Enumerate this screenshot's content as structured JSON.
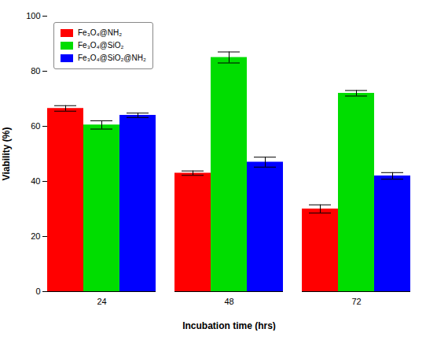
{
  "chart_data": {
    "type": "bar",
    "categories": [
      "24",
      "48",
      "72"
    ],
    "series": [
      {
        "name": "Fe₃O₄@NH₂",
        "color": "#ff0000",
        "values": [
          66.5,
          43.0,
          30.0
        ],
        "errors": [
          1.0,
          0.8,
          1.5
        ]
      },
      {
        "name": "Fe₃O₄@SiO₂",
        "color": "#00dd00",
        "values": [
          60.5,
          85.0,
          72.0
        ],
        "errors": [
          1.5,
          2.0,
          1.0
        ]
      },
      {
        "name": "Fe₃O₄@SiO₂@NH₂",
        "color": "#0000ff",
        "values": [
          64.0,
          47.0,
          42.0
        ],
        "errors": [
          0.8,
          1.8,
          1.2
        ]
      }
    ],
    "xlabel": "Incubation time (hrs)",
    "ylabel": "Viability (%)",
    "ylim": [
      0,
      100
    ],
    "yticks": [
      0,
      20,
      40,
      60,
      80,
      100
    ],
    "grid": false,
    "legend": "upper left"
  }
}
